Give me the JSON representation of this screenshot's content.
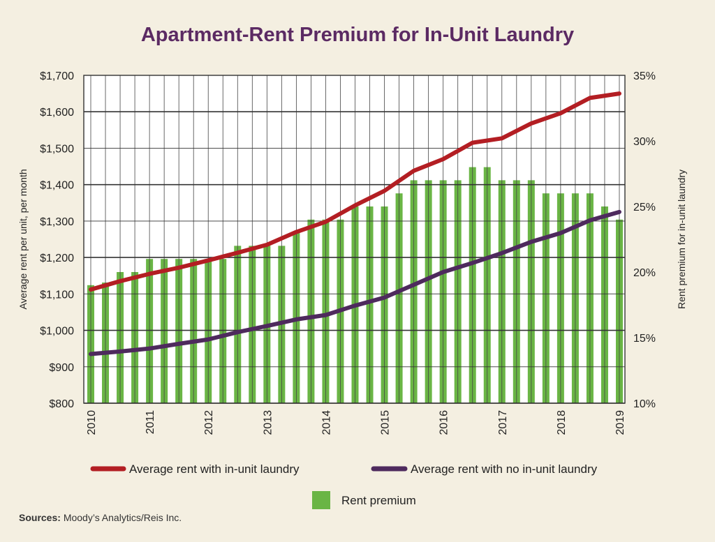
{
  "title": "Apartment-Rent Premium for In-Unit Laundry",
  "source": {
    "label": "Sources:",
    "text": "Moody’s Analytics/Reis Inc."
  },
  "chart_data": {
    "type": "bar+line",
    "title": "Apartment-Rent Premium for In-Unit Laundry",
    "ylabel_left": "Average rent per unit, per month",
    "ylabel_right": "Rent premium for in-unit laundry",
    "ylim_left": [
      800,
      1700
    ],
    "ylim_right": [
      10,
      35
    ],
    "y_ticks_left": [
      "$800",
      "$900",
      "$1,000",
      "$1,100",
      "$1,200",
      "$1,300",
      "$1,400",
      "$1,500",
      "$1,600",
      "$1,700"
    ],
    "y_ticks_right": [
      "10%",
      "15%",
      "20%",
      "25%",
      "30%",
      "35%"
    ],
    "x_ticks": [
      "2010",
      "2011",
      "2012",
      "2013",
      "2014",
      "2015",
      "2016",
      "2017",
      "2018",
      "2019"
    ],
    "x_range": [
      2010,
      2019
    ],
    "grid": true,
    "legend_position": "bottom",
    "bars": {
      "name": "Rent premium",
      "color": "#6ab545",
      "axis": "right",
      "x": [
        2010.0,
        2010.25,
        2010.5,
        2010.75,
        2011.0,
        2011.25,
        2011.5,
        2011.75,
        2012.0,
        2012.25,
        2012.5,
        2012.75,
        2013.0,
        2013.25,
        2013.5,
        2013.75,
        2014.0,
        2014.25,
        2014.5,
        2014.75,
        2015.0,
        2015.25,
        2015.5,
        2015.75,
        2016.0,
        2016.25,
        2016.5,
        2016.75,
        2017.0,
        2017.25,
        2017.5,
        2017.75,
        2018.0,
        2018.25,
        2018.5,
        2018.75,
        2019.0
      ],
      "values": [
        19.0,
        19.2,
        20.0,
        20.0,
        21.0,
        21.0,
        21.0,
        21.0,
        21.0,
        21.0,
        22.0,
        22.0,
        22.0,
        22.0,
        23.0,
        24.0,
        24.0,
        24.0,
        25.0,
        25.0,
        25.0,
        26.0,
        27.0,
        27.0,
        27.0,
        27.0,
        28.0,
        28.0,
        27.0,
        27.0,
        27.0,
        26.0,
        26.0,
        26.0,
        26.0,
        25.0,
        24.0
      ]
    },
    "series": [
      {
        "name": "Average rent with in-unit laundry",
        "color": "#b31e23",
        "axis": "left",
        "x": [
          2010.0,
          2010.5,
          2011.0,
          2011.5,
          2012.0,
          2012.5,
          2013.0,
          2013.5,
          2014.0,
          2014.5,
          2015.0,
          2015.5,
          2016.0,
          2016.5,
          2017.0,
          2017.5,
          2018.0,
          2018.5,
          2019.0
        ],
        "values": [
          1112,
          1135,
          1155,
          1172,
          1192,
          1213,
          1235,
          1270,
          1298,
          1343,
          1383,
          1438,
          1470,
          1515,
          1527,
          1568,
          1596,
          1638,
          1650
        ]
      },
      {
        "name": "Average rent with no in-unit laundry",
        "color": "#4e2a5d",
        "axis": "left",
        "x": [
          2010.0,
          2010.5,
          2011.0,
          2011.5,
          2012.0,
          2012.5,
          2013.0,
          2013.5,
          2014.0,
          2014.5,
          2015.0,
          2015.5,
          2016.0,
          2016.5,
          2017.0,
          2017.5,
          2018.0,
          2018.5,
          2019.0
        ],
        "values": [
          935,
          942,
          950,
          963,
          975,
          995,
          1012,
          1030,
          1042,
          1068,
          1090,
          1125,
          1160,
          1185,
          1212,
          1243,
          1267,
          1302,
          1325
        ]
      }
    ]
  }
}
